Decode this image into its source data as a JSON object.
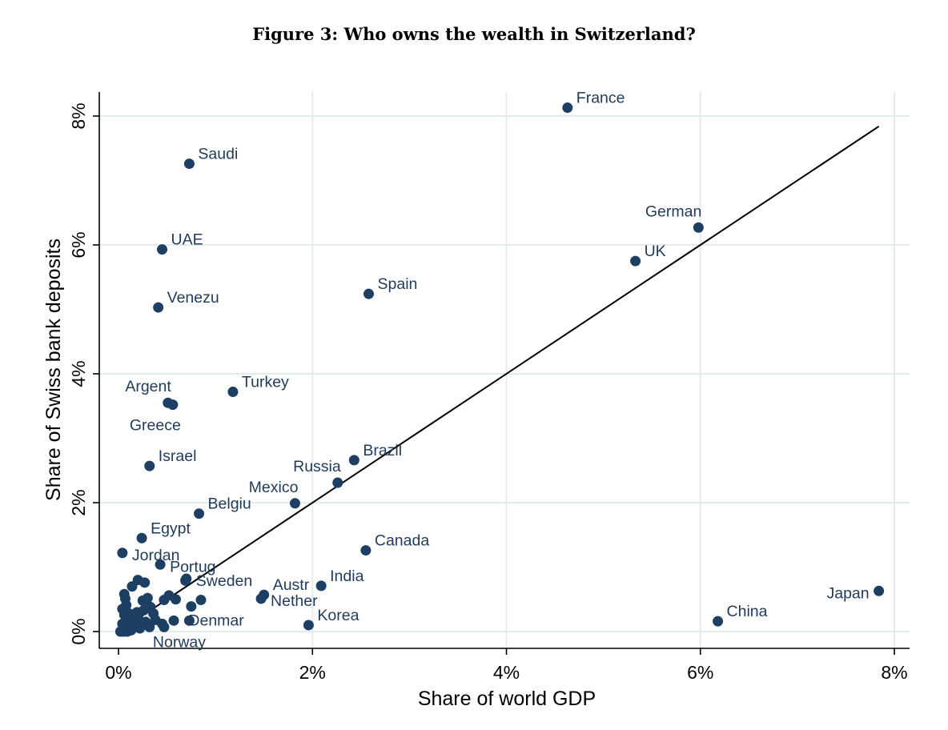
{
  "figure_title": "Figure 3: Who owns the wealth in Switzerland?",
  "colors": {
    "point": "#1d3f63",
    "label": "#1f3a5a",
    "grid": "#e3ecec",
    "fit_line": "#000000",
    "axis": "#000000"
  },
  "chart_data": {
    "type": "scatter",
    "title": "Figure 3: Who owns the wealth in Switzerland?",
    "xlabel": "Share of world GDP",
    "ylabel": "Share of Swiss bank deposits",
    "xlim": [
      0,
      8
    ],
    "ylim": [
      0,
      8
    ],
    "x_ticks": [
      0,
      2,
      4,
      6,
      8
    ],
    "y_ticks": [
      0,
      2,
      4,
      6,
      8
    ],
    "x_tick_labels": [
      "0%",
      "2%",
      "4%",
      "6%",
      "8%"
    ],
    "y_tick_labels": [
      "0%",
      "2%",
      "4%",
      "6%",
      "8%"
    ],
    "grid": true,
    "fit_line": {
      "x": [
        0,
        7.84
      ],
      "y": [
        0,
        7.84
      ]
    },
    "labeled_points": [
      {
        "label": "France",
        "x": 4.63,
        "y": 8.13,
        "pos": "ur"
      },
      {
        "label": "Saudi",
        "x": 0.73,
        "y": 7.26,
        "pos": "ur"
      },
      {
        "label": "German",
        "x": 5.98,
        "y": 6.27,
        "pos": "ul"
      },
      {
        "label": "UAE",
        "x": 0.45,
        "y": 5.93,
        "pos": "ur"
      },
      {
        "label": "UK",
        "x": 5.33,
        "y": 5.75,
        "pos": "ur"
      },
      {
        "label": "Spain",
        "x": 2.58,
        "y": 5.24,
        "pos": "ur"
      },
      {
        "label": "Venezu",
        "x": 0.41,
        "y": 5.03,
        "pos": "ur"
      },
      {
        "label": "Turkey",
        "x": 1.18,
        "y": 3.72,
        "pos": "ur"
      },
      {
        "label": "Argent",
        "x": 0.51,
        "y": 3.55,
        "pos": "ul"
      },
      {
        "label": "Greece",
        "x": 0.56,
        "y": 3.52,
        "pos": "bl"
      },
      {
        "label": "Brazil",
        "x": 2.43,
        "y": 2.66,
        "pos": "ur"
      },
      {
        "label": "Israel",
        "x": 0.32,
        "y": 2.57,
        "pos": "ur"
      },
      {
        "label": "Russia",
        "x": 2.26,
        "y": 2.31,
        "pos": "ul"
      },
      {
        "label": "Mexico",
        "x": 1.82,
        "y": 1.99,
        "pos": "ul"
      },
      {
        "label": "Belgiu",
        "x": 0.83,
        "y": 1.83,
        "pos": "ur"
      },
      {
        "label": "Egypt",
        "x": 0.24,
        "y": 1.45,
        "pos": "ur"
      },
      {
        "label": "Canada",
        "x": 2.55,
        "y": 1.26,
        "pos": "ur"
      },
      {
        "label": "Jordan",
        "x": 0.04,
        "y": 1.22,
        "pos": "br"
      },
      {
        "label": "Portug",
        "x": 0.43,
        "y": 1.04,
        "pos": "br"
      },
      {
        "label": "India",
        "x": 2.09,
        "y": 0.71,
        "pos": "ur"
      },
      {
        "label": "Sweden",
        "x": 0.7,
        "y": 0.82,
        "pos": "br"
      },
      {
        "label": "Austr",
        "x": 1.5,
        "y": 0.57,
        "pos": "ur"
      },
      {
        "label": "Nether",
        "x": 1.47,
        "y": 0.51,
        "pos": "br"
      },
      {
        "label": "Japan",
        "x": 7.84,
        "y": 0.63,
        "pos": "ll"
      },
      {
        "label": "China",
        "x": 6.18,
        "y": 0.16,
        "pos": "ur"
      },
      {
        "label": "Korea",
        "x": 1.96,
        "y": 0.1,
        "pos": "ur"
      },
      {
        "label": "Denmar",
        "x": 0.73,
        "y": 0.17,
        "pos": "enmar"
      },
      {
        "label": "Norway",
        "x": 0.47,
        "y": 0.07,
        "pos": "norway"
      }
    ],
    "unlabeled_points": [
      {
        "x": 0.02,
        "y": 0.0
      },
      {
        "x": 0.05,
        "y": 0.0
      },
      {
        "x": 0.09,
        "y": 0.0
      },
      {
        "x": 0.13,
        "y": 0.02
      },
      {
        "x": 0.04,
        "y": 0.12
      },
      {
        "x": 0.08,
        "y": 0.15
      },
      {
        "x": 0.12,
        "y": 0.09
      },
      {
        "x": 0.16,
        "y": 0.1
      },
      {
        "x": 0.06,
        "y": 0.26
      },
      {
        "x": 0.11,
        "y": 0.28
      },
      {
        "x": 0.15,
        "y": 0.22
      },
      {
        "x": 0.21,
        "y": 0.18
      },
      {
        "x": 0.04,
        "y": 0.35
      },
      {
        "x": 0.08,
        "y": 0.41
      },
      {
        "x": 0.07,
        "y": 0.51
      },
      {
        "x": 0.06,
        "y": 0.58
      },
      {
        "x": 0.14,
        "y": 0.7
      },
      {
        "x": 0.2,
        "y": 0.8
      },
      {
        "x": 0.27,
        "y": 0.76
      },
      {
        "x": 0.25,
        "y": 0.48
      },
      {
        "x": 0.3,
        "y": 0.52
      },
      {
        "x": 0.26,
        "y": 0.33
      },
      {
        "x": 0.33,
        "y": 0.38
      },
      {
        "x": 0.36,
        "y": 0.28
      },
      {
        "x": 0.28,
        "y": 0.15
      },
      {
        "x": 0.32,
        "y": 0.07
      },
      {
        "x": 0.38,
        "y": 0.18
      },
      {
        "x": 0.45,
        "y": 0.12
      },
      {
        "x": 0.47,
        "y": 0.49
      },
      {
        "x": 0.52,
        "y": 0.56
      },
      {
        "x": 0.59,
        "y": 0.5
      },
      {
        "x": 0.57,
        "y": 0.17
      },
      {
        "x": 0.75,
        "y": 0.39
      },
      {
        "x": 0.85,
        "y": 0.49
      },
      {
        "x": 0.69,
        "y": 0.79
      },
      {
        "x": 0.19,
        "y": 0.3
      },
      {
        "x": 0.1,
        "y": 0.05
      },
      {
        "x": 0.22,
        "y": 0.05
      }
    ]
  }
}
